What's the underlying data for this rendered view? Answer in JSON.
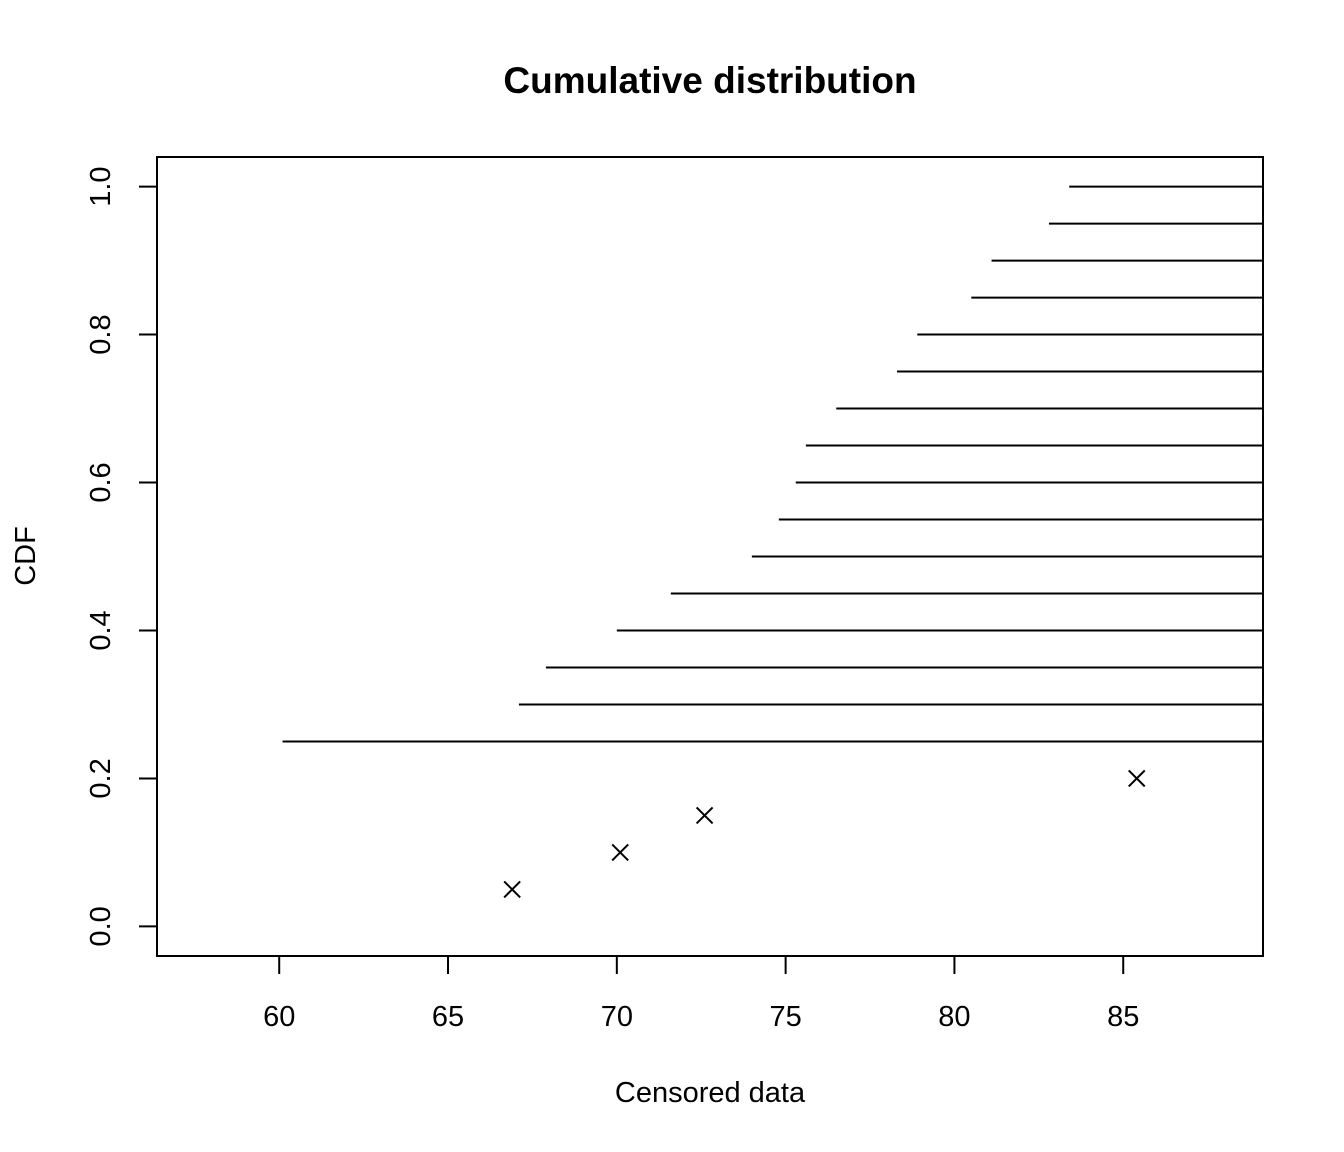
{
  "chart_data": {
    "type": "scatter",
    "title": "Cumulative distribution",
    "xlabel": "Censored data",
    "ylabel": "CDF",
    "xlim": [
      56.38,
      89.14
    ],
    "ylim": [
      -0.04,
      1.04
    ],
    "x_ticks": [
      60,
      65,
      70,
      75,
      80,
      85
    ],
    "x_tick_labels": [
      "60",
      "65",
      "70",
      "75",
      "80",
      "85"
    ],
    "y_ticks": [
      0.0,
      0.2,
      0.4,
      0.6,
      0.8,
      1.0
    ],
    "y_tick_labels": [
      "0.0",
      "0.2",
      "0.4",
      "0.6",
      "0.8",
      "1.0"
    ],
    "grid": false,
    "legend": false,
    "series": [
      {
        "kind": "points",
        "marker": "x",
        "points": [
          {
            "x": 66.9,
            "y": 0.05
          },
          {
            "x": 70.1,
            "y": 0.1
          },
          {
            "x": 72.6,
            "y": 0.15
          },
          {
            "x": 85.4,
            "y": 0.2
          }
        ]
      },
      {
        "kind": "right-censored-segments",
        "segments": [
          {
            "x_start": 60.1,
            "y": 0.25
          },
          {
            "x_start": 67.1,
            "y": 0.3
          },
          {
            "x_start": 67.9,
            "y": 0.35
          },
          {
            "x_start": 70.0,
            "y": 0.4
          },
          {
            "x_start": 71.6,
            "y": 0.45
          },
          {
            "x_start": 74.0,
            "y": 0.5
          },
          {
            "x_start": 74.8,
            "y": 0.55
          },
          {
            "x_start": 75.3,
            "y": 0.6
          },
          {
            "x_start": 75.6,
            "y": 0.65
          },
          {
            "x_start": 76.5,
            "y": 0.7
          },
          {
            "x_start": 78.3,
            "y": 0.75
          },
          {
            "x_start": 78.9,
            "y": 0.8
          },
          {
            "x_start": 80.5,
            "y": 0.85
          },
          {
            "x_start": 81.1,
            "y": 0.9
          },
          {
            "x_start": 82.8,
            "y": 0.95
          },
          {
            "x_start": 83.4,
            "y": 1.0
          }
        ]
      }
    ],
    "colors": {
      "foreground": "#000000",
      "background": "#ffffff"
    }
  }
}
